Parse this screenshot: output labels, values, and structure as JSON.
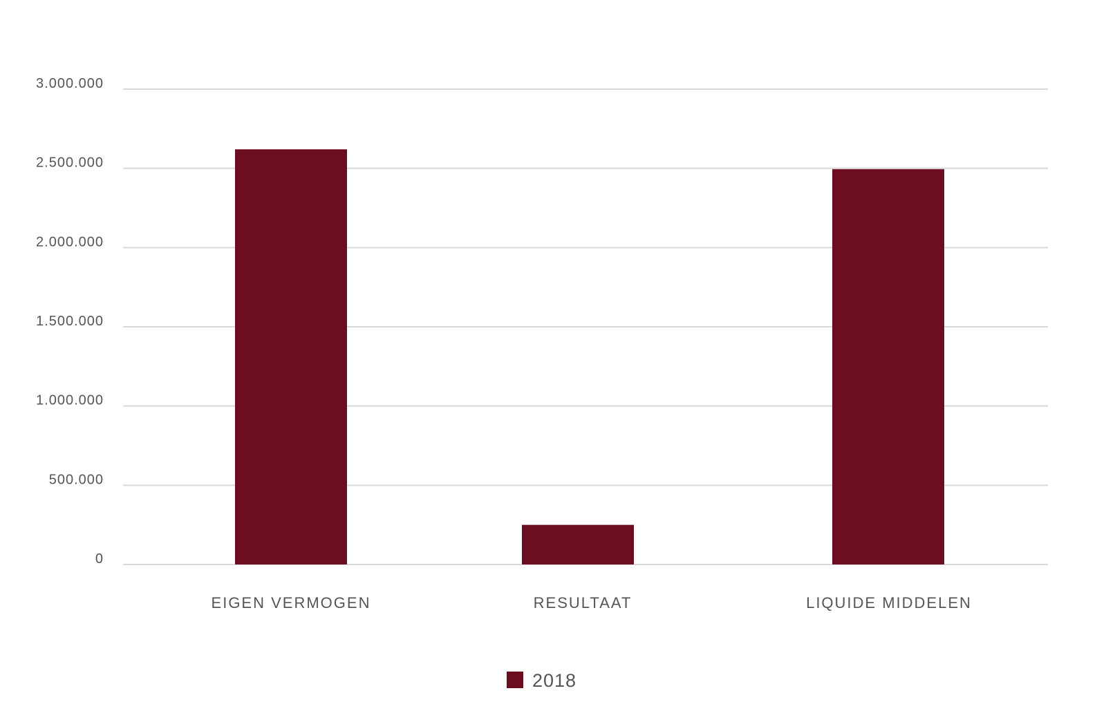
{
  "chart_data": {
    "type": "bar",
    "title": "",
    "xlabel": "",
    "ylabel": "",
    "categories": [
      "EIGEN VERMOGEN",
      "RESULTAAT",
      "LIQUIDE MIDDELEN"
    ],
    "series": [
      {
        "name": "2018",
        "color": "#6d0d20",
        "values": [
          2620000,
          250000,
          2495000
        ]
      }
    ],
    "ylim": [
      0,
      3000000
    ],
    "yticks": [
      0,
      500000,
      1000000,
      1500000,
      2000000,
      2500000,
      3000000
    ],
    "ytick_labels": [
      "0",
      "500.000",
      "1.000.000",
      "1.500.000",
      "2.000.000",
      "2.500.000",
      "3.000.000"
    ],
    "grid": true,
    "legend": "bottom-center"
  }
}
